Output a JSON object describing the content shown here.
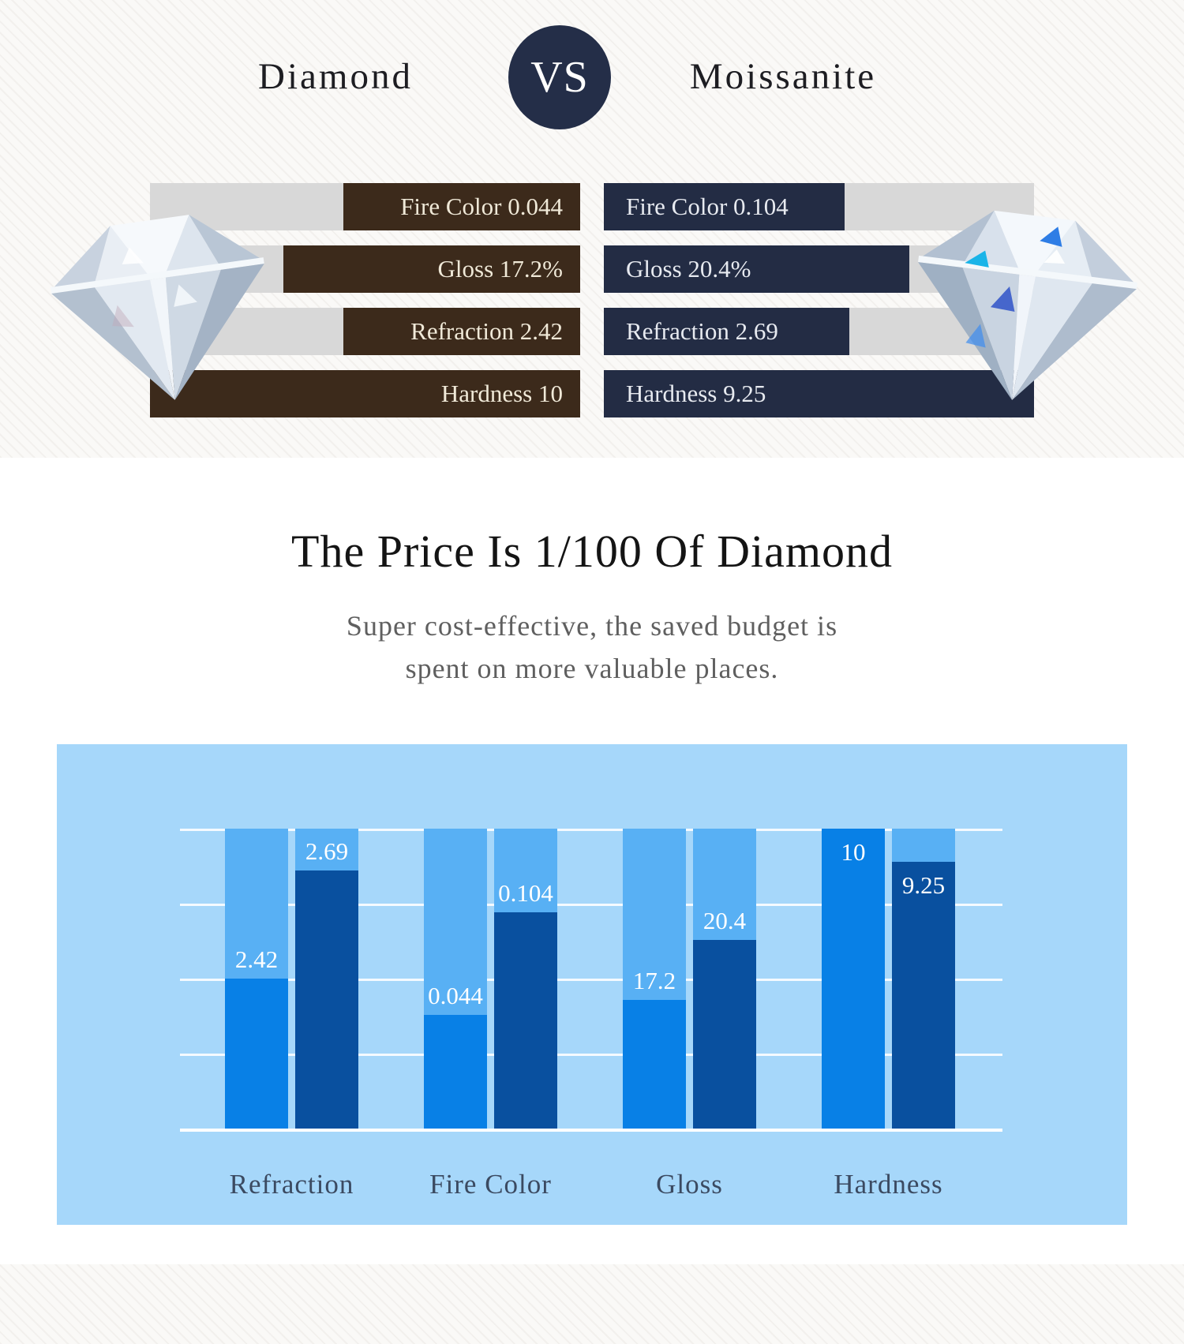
{
  "header": {
    "left_label": "Diamond",
    "vs_label": "VS",
    "right_label": "Moissanite",
    "vs_circle_color": "#242e48"
  },
  "comparison": {
    "rows": [
      {
        "metric": "Fire Color",
        "diamond_label": "Fire Color 0.044",
        "moissanite_label": "Fire Color 0.104",
        "diamond_pct": 55,
        "moissanite_pct": 56
      },
      {
        "metric": "Gloss",
        "diamond_label": "Gloss 17.2%",
        "moissanite_label": "Gloss 20.4%",
        "diamond_pct": 69,
        "moissanite_pct": 71
      },
      {
        "metric": "Refraction",
        "diamond_label": "Refraction 2.42",
        "moissanite_label": "Refraction 2.69",
        "diamond_pct": 55,
        "moissanite_pct": 57
      },
      {
        "metric": "Hardness",
        "diamond_label": "Hardness 10",
        "moissanite_label": "Hardness 9.25",
        "diamond_pct": 100,
        "moissanite_pct": 100
      }
    ],
    "colors": {
      "diamond_bar": "#3c2a1b",
      "moissanite_bar": "#232c44",
      "track": "#d8d8d8"
    }
  },
  "price_section": {
    "title": "The Price Is 1/100 Of Diamond",
    "subtitle_line1": "Super cost-effective, the saved budget is",
    "subtitle_line2": "spent on more valuable places."
  },
  "chart_data": {
    "type": "bar",
    "title": "",
    "categories": [
      "Refraction",
      "Fire Color",
      "Gloss",
      "Hardness"
    ],
    "series": [
      {
        "name": "Diamond",
        "values": [
          2.42,
          0.044,
          17.2,
          10
        ],
        "labels": [
          "2.42",
          "0.044",
          "17.2",
          "10"
        ],
        "color": "#0880e6",
        "heights_pct": [
          50,
          38,
          43,
          100
        ],
        "label_inside": [
          false,
          false,
          false,
          true
        ]
      },
      {
        "name": "Moissanite",
        "values": [
          2.69,
          0.104,
          20.4,
          9.25
        ],
        "labels": [
          "2.69",
          "0.104",
          "20.4",
          "9.25"
        ],
        "color": "#09509f",
        "heights_pct": [
          86,
          72,
          63,
          89
        ],
        "label_inside": [
          false,
          false,
          false,
          true
        ]
      }
    ],
    "grid": true,
    "gridline_count": 5,
    "legend": "none",
    "panel_bg": "#a6d7fa",
    "track_color": "#58b0f4",
    "category_label_color": "#3b4a61",
    "value_label_color": "#ffffff"
  }
}
